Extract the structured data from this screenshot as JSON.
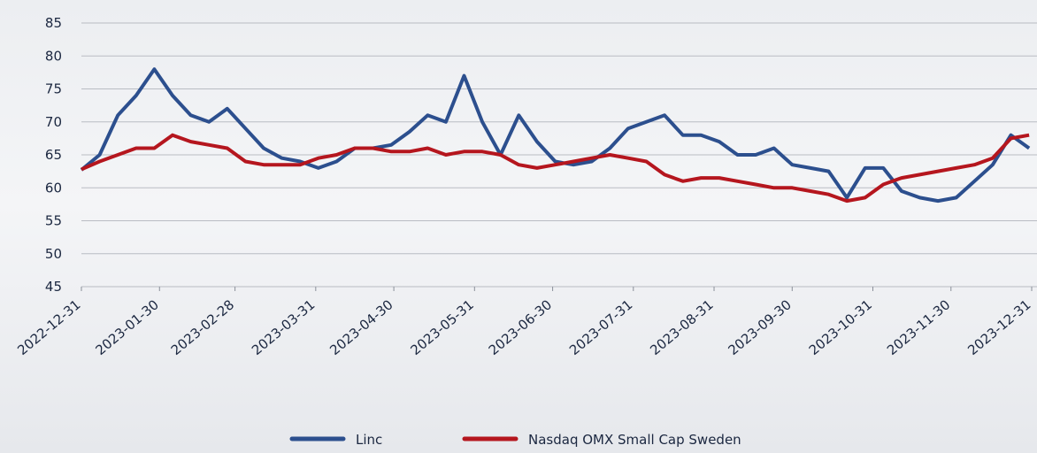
{
  "chart_data": {
    "type": "line",
    "x": [
      "2022-12-31",
      "2023-01-07",
      "2023-01-14",
      "2023-01-21",
      "2023-01-28",
      "2023-02-04",
      "2023-02-11",
      "2023-02-18",
      "2023-02-25",
      "2023-03-04",
      "2023-03-11",
      "2023-03-18",
      "2023-03-25",
      "2023-04-01",
      "2023-04-08",
      "2023-04-15",
      "2023-04-22",
      "2023-04-29",
      "2023-05-06",
      "2023-05-13",
      "2023-05-20",
      "2023-05-27",
      "2023-06-03",
      "2023-06-10",
      "2023-06-17",
      "2023-06-24",
      "2023-07-01",
      "2023-07-08",
      "2023-07-15",
      "2023-07-22",
      "2023-07-29",
      "2023-08-05",
      "2023-08-12",
      "2023-08-19",
      "2023-08-26",
      "2023-09-02",
      "2023-09-09",
      "2023-09-16",
      "2023-09-23",
      "2023-09-30",
      "2023-10-07",
      "2023-10-14",
      "2023-10-21",
      "2023-10-28",
      "2023-11-04",
      "2023-11-11",
      "2023-11-18",
      "2023-11-25",
      "2023-12-02",
      "2023-12-09",
      "2023-12-16",
      "2023-12-23",
      "2023-12-30"
    ],
    "series": [
      {
        "name": "Linc",
        "color": "#2c4f8e",
        "values": [
          62.7,
          65,
          71,
          74,
          78,
          74,
          71,
          70,
          72,
          69,
          66,
          64.5,
          64,
          63,
          64,
          66,
          66,
          66.5,
          68.5,
          71,
          70,
          77,
          70,
          65,
          71,
          67,
          64,
          63.5,
          64,
          66,
          69,
          70,
          71,
          68,
          68,
          67,
          65,
          65,
          66,
          63.5,
          63,
          62.5,
          58.5,
          63,
          63,
          59.5,
          58.5,
          58,
          58.5,
          61,
          63.5,
          68,
          66
        ]
      },
      {
        "name": "Nasdaq OMX Small Cap Sweden",
        "color": "#b5161e",
        "values": [
          62.8,
          64,
          65,
          66,
          66,
          68,
          67,
          66.5,
          66,
          64,
          63.5,
          63.5,
          63.5,
          64.5,
          65,
          66,
          66,
          65.5,
          65.5,
          66,
          65,
          65.5,
          65.5,
          65,
          63.5,
          63,
          63.5,
          64,
          64.5,
          65,
          64.5,
          64,
          62,
          61,
          61.5,
          61.5,
          61,
          60.5,
          60,
          60,
          59.5,
          59,
          58,
          58.5,
          60.5,
          61.5,
          62,
          62.5,
          63,
          63.5,
          64.5,
          67.5,
          68
        ]
      }
    ],
    "xlim": [
      "2022-12-31",
      "2023-12-31"
    ],
    "xticks": [
      "2022-12-31",
      "2023-01-30",
      "2023-02-28",
      "2023-03-31",
      "2023-04-30",
      "2023-05-31",
      "2023-06-30",
      "2023-07-31",
      "2023-08-31",
      "2023-09-30",
      "2023-10-31",
      "2023-11-30",
      "2023-12-31"
    ],
    "ylim": [
      45,
      85
    ],
    "yticks": [
      45,
      50,
      55,
      60,
      65,
      70,
      75,
      80,
      85
    ],
    "grid": true
  }
}
